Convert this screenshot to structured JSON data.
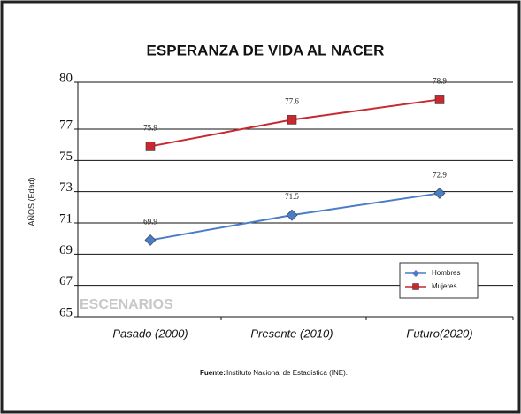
{
  "chart_data": {
    "type": "line",
    "title": "ESPERANZA DE VIDA AL NACER",
    "ylabel": "AÑOS (Edad)",
    "watermark": "ESCENARIOS",
    "source_label": "Fuente:",
    "source": "Instituto Nacional de Estadística (INE).",
    "categories": [
      "Pasado (2000)",
      "Presente (2010)",
      "Futuro(2020)"
    ],
    "series": [
      {
        "name": "Hombres",
        "color": "#4a7cc7",
        "marker": "diamond",
        "values": [
          69.9,
          71.5,
          72.9
        ]
      },
      {
        "name": "Mujeres",
        "color": "#c8282e",
        "marker": "square",
        "values": [
          75.9,
          77.6,
          78.9
        ]
      }
    ],
    "ylim": [
      65,
      80
    ],
    "yticks": [
      65,
      67,
      69,
      71,
      73,
      75,
      77,
      80
    ],
    "grid": true,
    "legend": "lower right"
  }
}
